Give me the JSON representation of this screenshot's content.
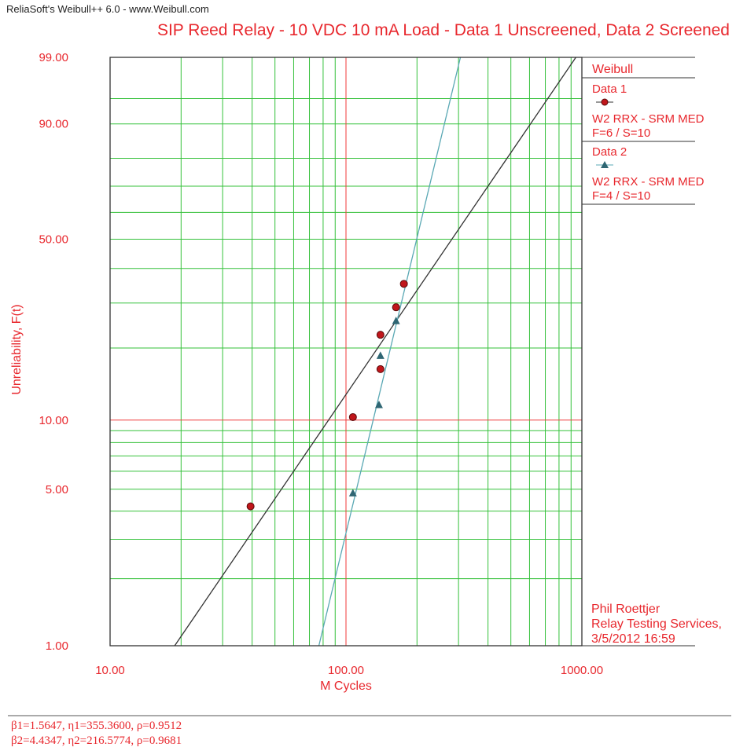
{
  "header": {
    "app_title": "ReliaSoft's Weibull++ 6.0 - www.Weibull.com"
  },
  "chart_data": {
    "type": "scatter",
    "title": "SIP Reed Relay - 10 VDC 10 mA Load - Data 1 Unscreened, Data 2 Screened",
    "xlabel": "M Cycles",
    "ylabel": "Unreliability, F(t)",
    "x_scale": "log",
    "y_scale": "weibull",
    "xlim": [
      10,
      1000
    ],
    "ylim": [
      1,
      99
    ],
    "x_ticks": [
      10,
      100,
      1000
    ],
    "x_tick_labels": [
      "10.00",
      "100.00",
      "1000.00"
    ],
    "y_ticks": [
      1,
      5,
      10,
      50,
      90,
      99
    ],
    "y_tick_labels": [
      "1.00",
      "5.00",
      "10.00",
      "50.00",
      "90.00",
      "99.00"
    ],
    "grid": true,
    "legend_position": "right",
    "legend_title": "Weibull",
    "series": [
      {
        "name": "Data 1",
        "description": "W2 RRX - SRM MED",
        "counts": "F=6 / S=10",
        "marker": "circle",
        "color": "#c0161b",
        "points": [
          {
            "x": 39.4,
            "y": 4.2
          },
          {
            "x": 107,
            "y": 10.3
          },
          {
            "x": 140,
            "y": 16.4
          },
          {
            "x": 140,
            "y": 22.6
          },
          {
            "x": 163,
            "y": 28.9
          },
          {
            "x": 176,
            "y": 35.3
          }
        ],
        "fit": {
          "beta": 1.5647,
          "eta": 355.36,
          "rho": 0.9512,
          "color": "#333333"
        }
      },
      {
        "name": "Data 2",
        "description": "W2 RRX - SRM MED",
        "counts": "F=4 / S=10",
        "marker": "triangle",
        "color": "#2f6673",
        "points": [
          {
            "x": 107,
            "y": 4.8
          },
          {
            "x": 138,
            "y": 11.6
          },
          {
            "x": 140,
            "y": 18.6
          },
          {
            "x": 163,
            "y": 25.6
          }
        ],
        "fit": {
          "beta": 4.4347,
          "eta": 216.5774,
          "rho": 0.9681,
          "color": "#5aa8b4"
        }
      }
    ]
  },
  "note": {
    "line1": "Phil Roettjer",
    "line2": "Relay Testing Services,",
    "line3": "3/5/2012 16:59"
  },
  "params": {
    "line1": "β1=1.5647, η1=355.3600, ρ=0.9512",
    "line2": "β2=4.4347, η2=216.5774, ρ=0.9681"
  },
  "colors": {
    "grid_minor": "#34c13a",
    "grid_major": "#f03a3a",
    "frame": "#333333",
    "text": "#e8282e"
  }
}
